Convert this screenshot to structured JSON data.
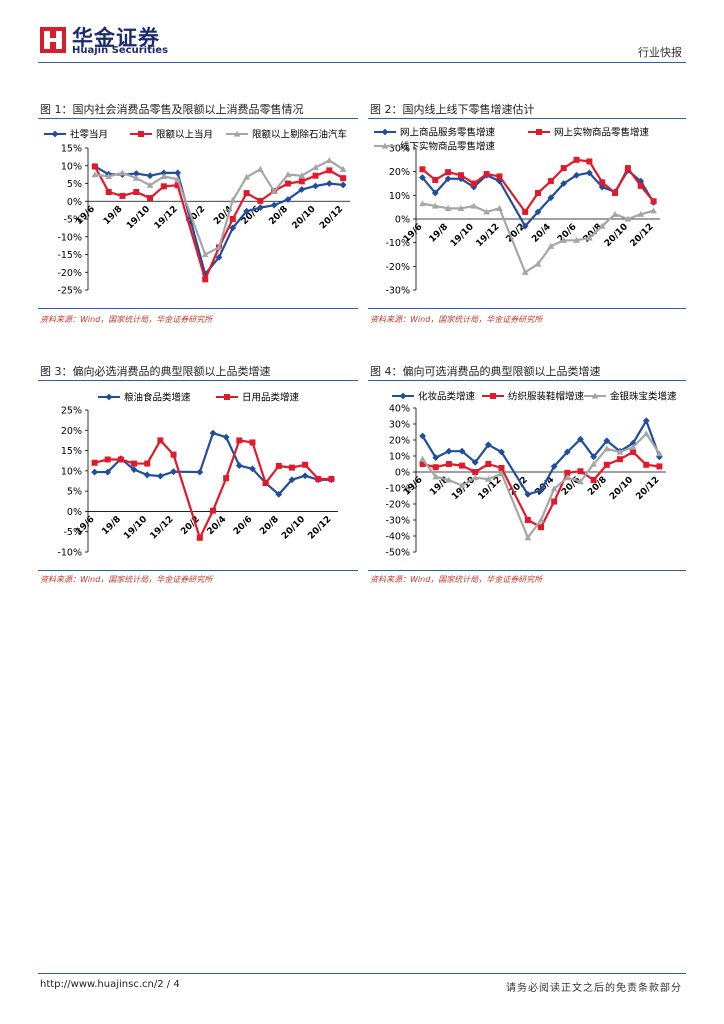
{
  "header": {
    "brand_cn": "华金证券",
    "brand_en": "Huajin Securities",
    "report_type": "行业快报"
  },
  "figures": [
    {
      "title": "图 1：国内社会消费品零售及限额以上消费品零售情况",
      "source": "资料来源：Wind，国家统计局，华金证券研究所"
    },
    {
      "title": "图 2：国内线上线下零售增速估计",
      "source": "资料来源：Wind，国家统计局，华金证券研究所"
    },
    {
      "title": "图 3：偏向必选消费品的典型限额以上品类增速",
      "source": "资料来源：Wind，国家统计局，华金证券研究所"
    },
    {
      "title": "图 4：偏向可选消费品的典型限额以上品类增速",
      "source": "资料来源：Wind，国家统计局，华金证券研究所"
    }
  ],
  "footer": {
    "url": "http://www.huajinsc.cn/",
    "page": "2 / 4",
    "disclaimer": "请务必阅读正文之后的免责条款部分"
  },
  "chart_data": [
    {
      "type": "line",
      "categories": [
        "19/6",
        "19/7",
        "19/8",
        "19/9",
        "19/10",
        "19/11",
        "19/12",
        "20/1",
        "20/2",
        "20/3",
        "20/4",
        "20/5",
        "20/6",
        "20/7",
        "20/8",
        "20/9",
        "20/10",
        "20/11",
        "20/12"
      ],
      "xticks": [
        "19/6",
        "19/8",
        "19/10",
        "19/12",
        "20/2",
        "20/4",
        "20/6",
        "20/8",
        "20/10",
        "20/12"
      ],
      "ylim": [
        -25,
        15
      ],
      "ystep": 5,
      "yformat": "pct",
      "series": [
        {
          "name": "社零当月",
          "color": "#1f4e9c",
          "marker": "diamond",
          "values": [
            9.8,
            7.6,
            7.5,
            7.8,
            7.2,
            8.0,
            8.0,
            null,
            -20.5,
            -15.8,
            -7.5,
            -2.8,
            -1.8,
            -1.1,
            0.5,
            3.3,
            4.3,
            5.0,
            4.6
          ]
        },
        {
          "name": "限额以上当月",
          "color": "#e0192b",
          "marker": "square",
          "values": [
            9.8,
            2.6,
            1.5,
            2.6,
            0.9,
            4.2,
            4.5,
            null,
            -22.0,
            -13.0,
            -5.0,
            2.3,
            0.1,
            2.9,
            5.0,
            5.6,
            7.2,
            8.7,
            6.5
          ]
        },
        {
          "name": "限额以上剔除石油汽车",
          "color": "#a6a6a6",
          "marker": "triangle",
          "values": [
            7.5,
            7.0,
            8.0,
            6.5,
            4.5,
            7.0,
            6.2,
            null,
            -15.0,
            -13.0,
            0.3,
            6.8,
            9.0,
            2.8,
            7.5,
            7.2,
            9.5,
            11.5,
            9.0
          ]
        }
      ]
    },
    {
      "type": "line",
      "categories": [
        "19/6",
        "19/7",
        "19/8",
        "19/9",
        "19/10",
        "19/11",
        "19/12",
        "20/1",
        "20/2",
        "20/3",
        "20/4",
        "20/5",
        "20/6",
        "20/7",
        "20/8",
        "20/9",
        "20/10",
        "20/11",
        "20/12"
      ],
      "xticks": [
        "19/6",
        "19/8",
        "19/10",
        "19/12",
        "20/2",
        "20/4",
        "20/6",
        "20/8",
        "20/10",
        "20/12"
      ],
      "ylim": [
        -30,
        30
      ],
      "ystep": 10,
      "yformat": "pct",
      "series": [
        {
          "name": "网上商品服务零售增速",
          "color": "#1f4e9c",
          "marker": "diamond",
          "values": [
            17.5,
            11.0,
            17.0,
            17.0,
            13.5,
            18.5,
            16.0,
            null,
            -3.0,
            3.0,
            9.0,
            15.0,
            18.5,
            19.5,
            13.5,
            11.5,
            20.5,
            16.0,
            7.0
          ]
        },
        {
          "name": "网上实物商品零售增速",
          "color": "#e0192b",
          "marker": "square",
          "values": [
            21.0,
            16.5,
            19.8,
            18.5,
            15.0,
            19.0,
            18.0,
            null,
            3.0,
            11.0,
            16.0,
            21.5,
            25.0,
            24.3,
            15.5,
            11.0,
            21.5,
            14.0,
            7.5
          ]
        },
        {
          "name": "线下实物商品零售增速",
          "color": "#a6a6a6",
          "marker": "triangle",
          "values": [
            6.5,
            5.5,
            4.5,
            4.5,
            5.5,
            3.0,
            4.5,
            null,
            -22.5,
            -19.0,
            -11.5,
            -9.0,
            -9.0,
            -8.0,
            -3.0,
            2.0,
            0.0,
            2.0,
            3.5
          ]
        }
      ]
    },
    {
      "type": "line",
      "categories": [
        "19/6",
        "19/7",
        "19/8",
        "19/9",
        "19/10",
        "19/11",
        "19/12",
        "20/1",
        "20/2",
        "20/3",
        "20/4",
        "20/5",
        "20/6",
        "20/7",
        "20/8",
        "20/9",
        "20/10",
        "20/11",
        "20/12"
      ],
      "xticks": [
        "19/6",
        "19/8",
        "19/10",
        "19/12",
        "20/2",
        "20/4",
        "20/6",
        "20/8",
        "20/10",
        "20/12"
      ],
      "ylim": [
        -10,
        25
      ],
      "ystep": 5,
      "yformat": "pct",
      "series": [
        {
          "name": "粮油食品类增速",
          "color": "#1f4e9c",
          "marker": "diamond",
          "values": [
            9.7,
            9.7,
            13.0,
            10.3,
            9.0,
            8.7,
            9.8,
            null,
            9.7,
            19.3,
            18.3,
            11.3,
            10.5,
            7.0,
            4.2,
            7.8,
            8.8,
            7.8,
            7.8
          ]
        },
        {
          "name": "日用品类增速",
          "color": "#e0192b",
          "marker": "square",
          "values": [
            12.0,
            12.8,
            12.8,
            11.8,
            11.8,
            17.5,
            14.0,
            null,
            -6.5,
            0.2,
            8.2,
            17.5,
            17.0,
            7.0,
            11.2,
            10.8,
            11.5,
            8.0,
            8.0
          ]
        }
      ]
    },
    {
      "type": "line",
      "categories": [
        "19/6",
        "19/7",
        "19/8",
        "19/9",
        "19/10",
        "19/11",
        "19/12",
        "20/1",
        "20/2",
        "20/3",
        "20/4",
        "20/5",
        "20/6",
        "20/7",
        "20/8",
        "20/9",
        "20/10",
        "20/11",
        "20/12"
      ],
      "xticks": [
        "19/6",
        "19/8",
        "19/10",
        "19/12",
        "20/2",
        "20/4",
        "20/6",
        "20/8",
        "20/10",
        "20/12"
      ],
      "ylim": [
        -50,
        40
      ],
      "ystep": 10,
      "yformat": "pct",
      "series": [
        {
          "name": "化妆品类增速",
          "color": "#1f4e9c",
          "marker": "diamond",
          "values": [
            22.5,
            9.0,
            13.0,
            13.0,
            6.0,
            17.0,
            12.5,
            null,
            -14.0,
            -11.5,
            3.5,
            12.5,
            20.5,
            9.5,
            19.5,
            13.0,
            18.0,
            32.0,
            9.5
          ]
        },
        {
          "name": "纺织服装鞋帽增速",
          "color": "#e0192b",
          "marker": "square",
          "values": [
            5.0,
            3.0,
            5.0,
            4.0,
            0.0,
            5.0,
            2.5,
            null,
            -30.0,
            -34.5,
            -18.5,
            -0.5,
            0.5,
            -5.0,
            4.5,
            8.0,
            12.5,
            4.5,
            3.5
          ]
        },
        {
          "name": "金银珠宝类增速",
          "color": "#a6a6a6",
          "marker": "triangle",
          "values": [
            8.0,
            -3.0,
            -5.0,
            -8.5,
            -3.5,
            -4.5,
            -1.0,
            null,
            -41.0,
            -30.0,
            -10.5,
            -3.5,
            -6.0,
            5.0,
            14.5,
            12.5,
            15.5,
            24.0,
            11.5
          ]
        }
      ]
    }
  ]
}
